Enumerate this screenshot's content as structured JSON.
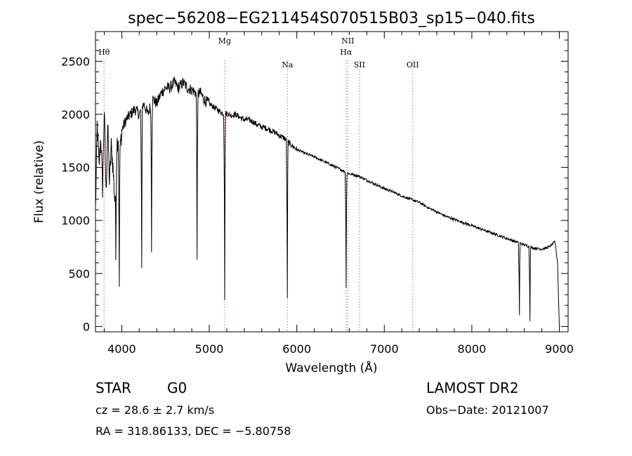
{
  "chart_data": {
    "type": "line",
    "title": "spec−56208−EG211454S070515B03_sp15−040.fits",
    "xlabel": "Wavelength (Å)",
    "ylabel": "Flux (relative)",
    "xlim": [
      3700,
      9100
    ],
    "ylim": [
      -50,
      2780
    ],
    "xticks": [
      4000,
      5000,
      6000,
      7000,
      8000,
      9000
    ],
    "yticks": [
      0,
      500,
      1000,
      1500,
      2000,
      2500
    ],
    "grid": false,
    "series": [
      {
        "x": [
          3700,
          3720,
          3740,
          3760,
          3780,
          3800,
          3820,
          3840,
          3860,
          3880,
          3900,
          3920,
          3940,
          3960,
          3980,
          4000,
          4050,
          4100,
          4150,
          4200,
          4250,
          4300,
          4350,
          4400,
          4450,
          4500,
          4550,
          4600,
          4650,
          4700,
          4750,
          4800,
          4850,
          4900,
          4950,
          5000,
          5050,
          5100,
          5150,
          5200,
          5250,
          5300,
          5350,
          5400,
          5450,
          5500,
          5550,
          5600,
          5650,
          5700,
          5750,
          5800,
          5850,
          5900,
          5950,
          6000,
          6100,
          6200,
          6300,
          6400,
          6500,
          6550,
          6600,
          6650,
          6700,
          6800,
          6900,
          7000,
          7100,
          7200,
          7300,
          7400,
          7500,
          7600,
          7700,
          7800,
          7900,
          8000,
          8100,
          8200,
          8300,
          8400,
          8500,
          8600,
          8700,
          8800,
          8850,
          8900,
          8950,
          8980,
          9000
        ],
        "y": [
          1100,
          1900,
          1500,
          1800,
          1300,
          2050,
          1250,
          1900,
          1350,
          1700,
          1500,
          1200,
          1700,
          1800,
          1650,
          1850,
          1950,
          2000,
          2050,
          2000,
          2100,
          2000,
          2150,
          2100,
          2200,
          2250,
          2250,
          2300,
          2250,
          2300,
          2250,
          2230,
          2200,
          2200,
          2130,
          2100,
          2070,
          2040,
          2010,
          2010,
          1990,
          2000,
          1970,
          1950,
          1950,
          1930,
          1900,
          1880,
          1870,
          1850,
          1830,
          1800,
          1780,
          1740,
          1700,
          1670,
          1630,
          1600,
          1560,
          1520,
          1480,
          1460,
          1440,
          1430,
          1420,
          1380,
          1340,
          1300,
          1270,
          1230,
          1200,
          1170,
          1120,
          1080,
          1040,
          1010,
          980,
          950,
          920,
          890,
          860,
          830,
          800,
          770,
          740,
          730,
          740,
          760,
          800,
          600,
          0
        ]
      }
    ],
    "absorption_features": [
      {
        "x": 3970,
        "depth": 1350
      },
      {
        "x": 3933,
        "depth": 900
      },
      {
        "x": 4226,
        "depth": 1500
      },
      {
        "x": 4340,
        "depth": 1420
      },
      {
        "x": 4861,
        "depth": 1570
      },
      {
        "x": 5175,
        "depth": 1760
      },
      {
        "x": 5890,
        "depth": 1480
      },
      {
        "x": 6563,
        "depth": 1090
      },
      {
        "x": 8542,
        "depth": 680
      },
      {
        "x": 8662,
        "depth": 700
      }
    ],
    "lines": [
      {
        "label": "Hθ",
        "x": 3798,
        "level": 1
      },
      {
        "label": "Mg",
        "x": 5175,
        "level": 0
      },
      {
        "label": "Na",
        "x": 5893,
        "level": 2
      },
      {
        "label": "NII",
        "x": 6583,
        "level": 0
      },
      {
        "label": "Hα",
        "x": 6563,
        "level": 1
      },
      {
        "label": "SII",
        "x": 6716,
        "level": 2
      },
      {
        "label": "OII",
        "x": 7325,
        "level": 2
      }
    ],
    "line_color": "#cc3333"
  },
  "info": {
    "object_class": "STAR",
    "subclass": "G0",
    "cz": "cz = 28.6 ± 2.7 km/s",
    "coords": "RA = 318.86133, DEC =  −5.80758",
    "survey": "LAMOST DR2",
    "obs_date": "Obs−Date: 20121007"
  }
}
